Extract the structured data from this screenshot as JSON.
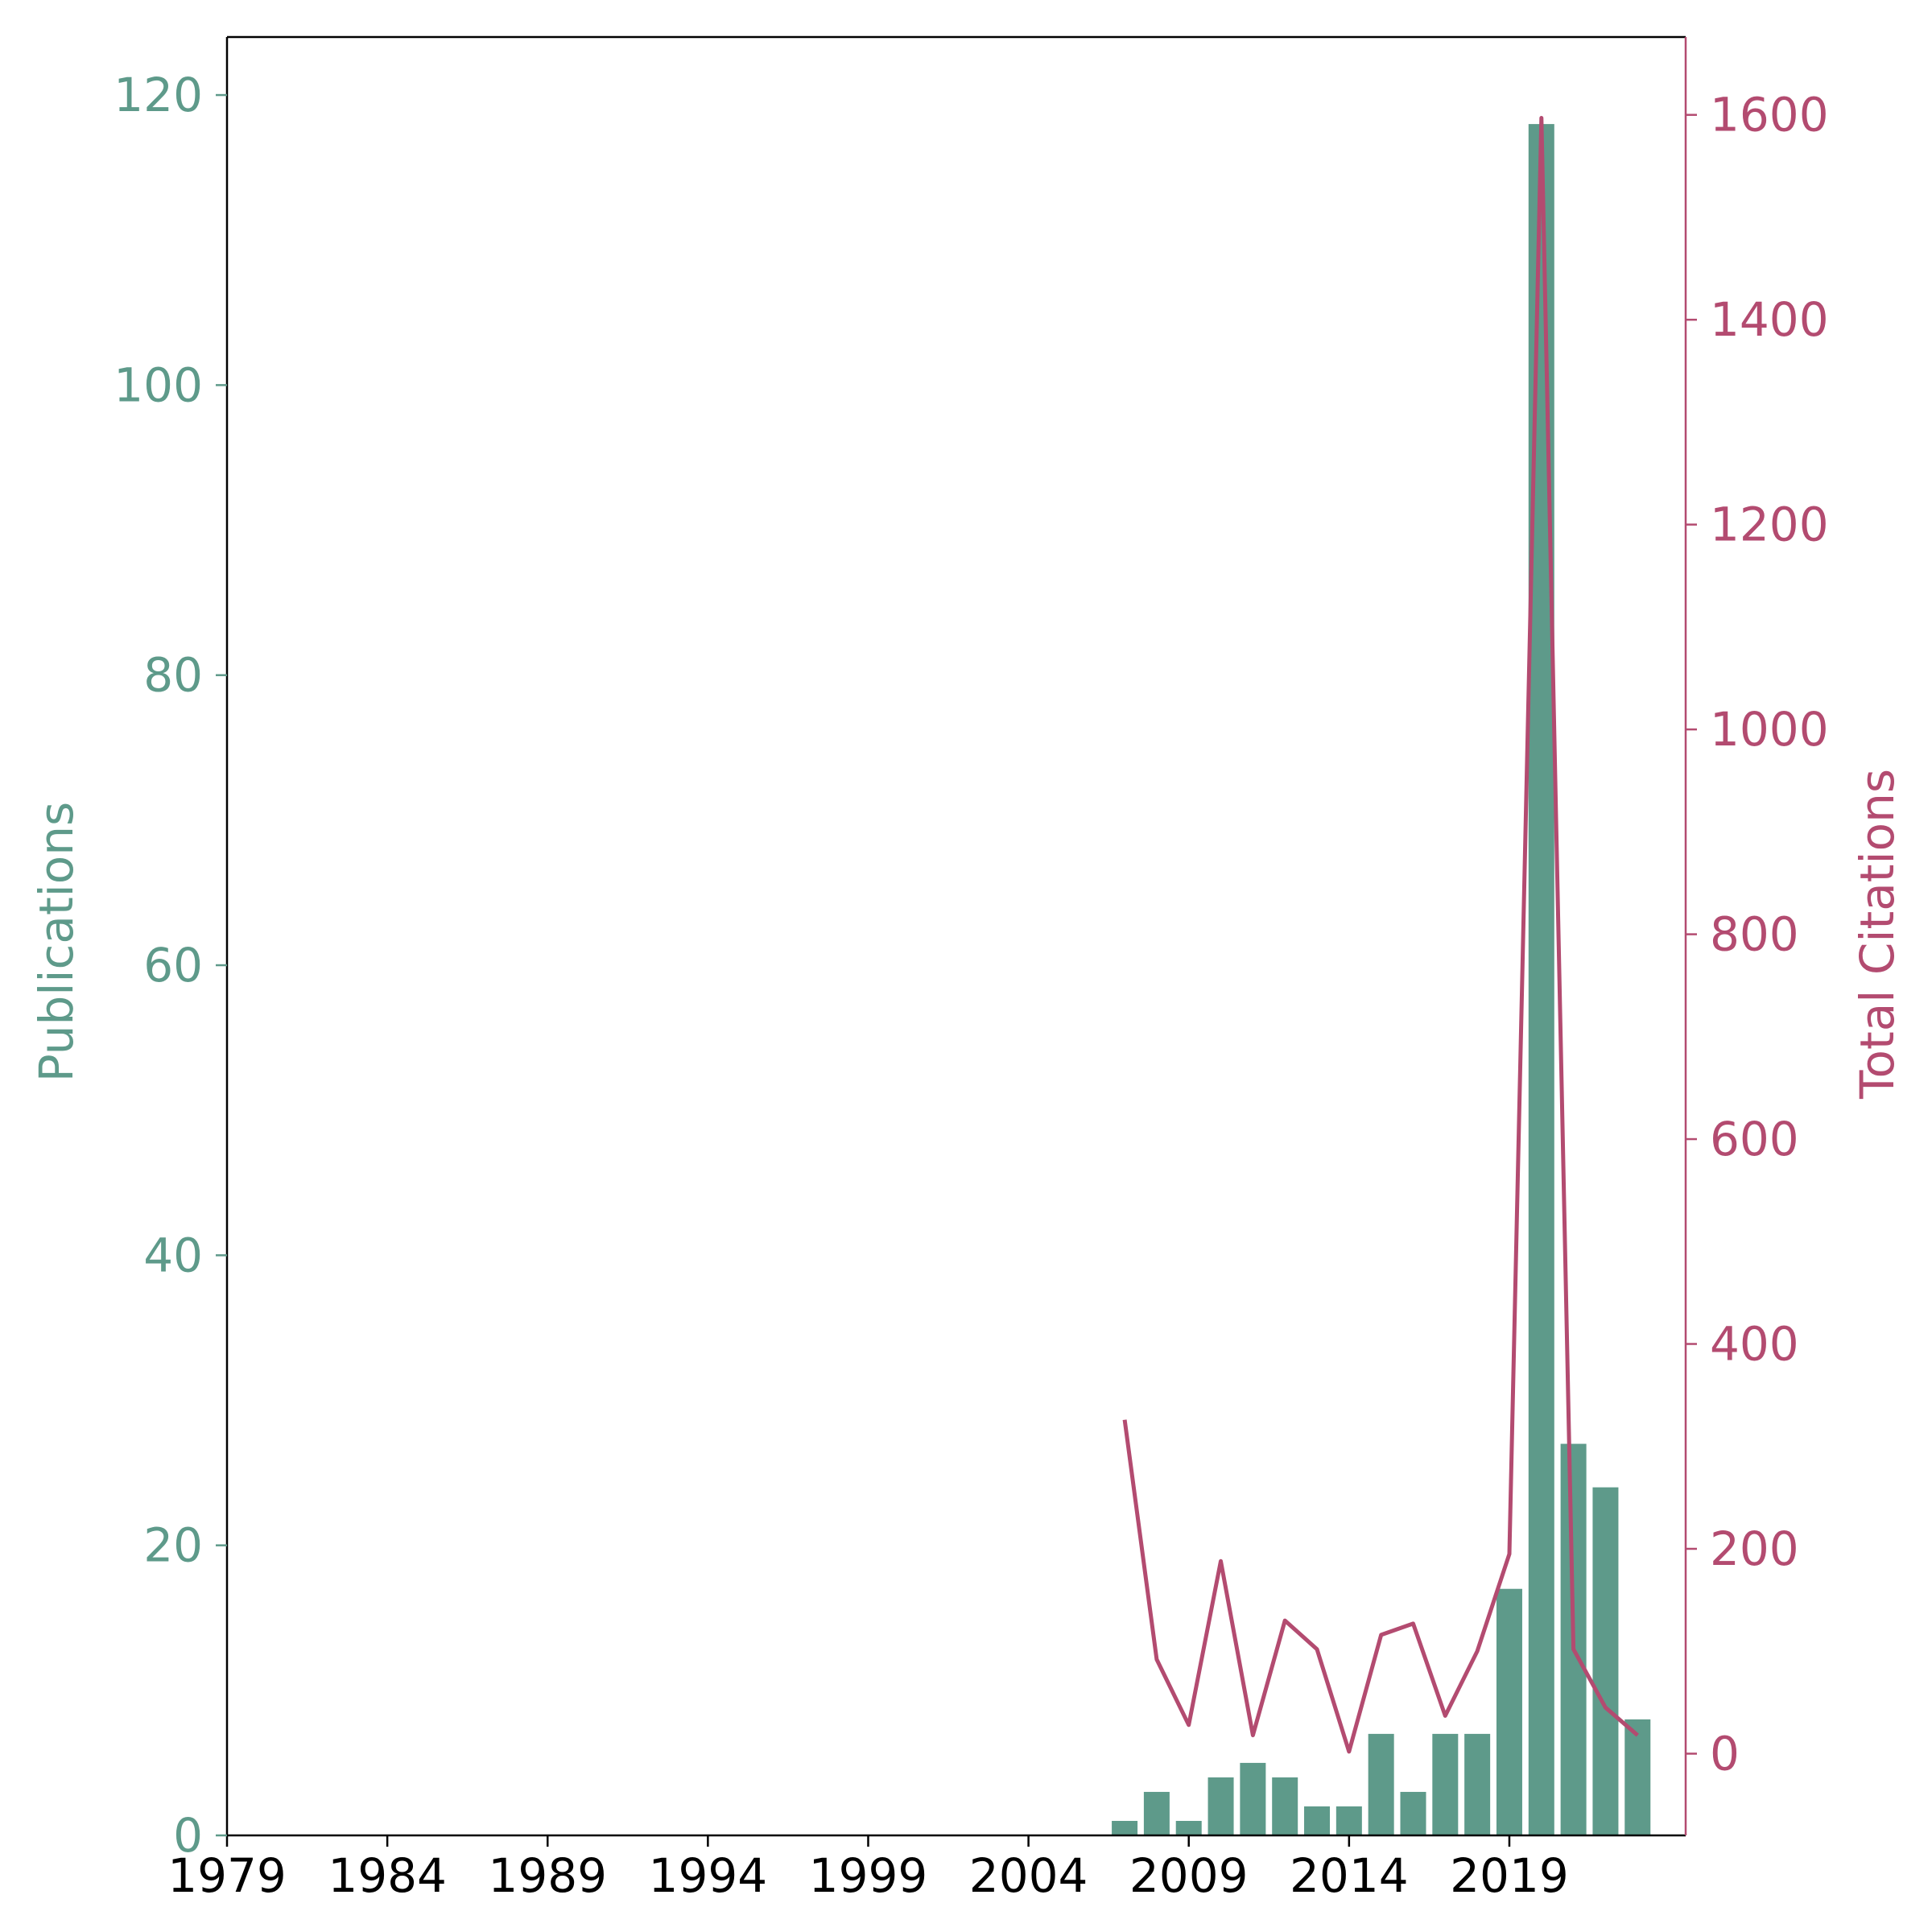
{
  "chart_data": {
    "type": "bar",
    "x_ticks": [
      "1979",
      "1984",
      "1989",
      "1994",
      "1999",
      "2004",
      "2009",
      "2014",
      "2019"
    ],
    "xlim": [
      1979,
      2024.5
    ],
    "categories": [
      2007,
      2008,
      2009,
      2010,
      2011,
      2012,
      2013,
      2014,
      2015,
      2016,
      2017,
      2018,
      2019,
      2020,
      2021,
      2022,
      2023
    ],
    "series": [
      {
        "type": "bar",
        "axis": "left",
        "color": "#5e9a8a",
        "values": [
          1,
          3,
          1,
          4,
          5,
          4,
          2,
          2,
          7,
          3,
          7,
          7,
          17,
          118,
          27,
          24,
          8
        ]
      },
      {
        "type": "line",
        "axis": "right",
        "color": "#b34b70",
        "values": [
          326,
          92,
          28,
          188,
          18,
          130,
          102,
          2,
          116,
          127,
          37,
          100,
          195,
          1597,
          102,
          45,
          18
        ]
      }
    ],
    "y_left": {
      "label": "Publications",
      "color": "#5e9a8a",
      "ylim": [
        0,
        124
      ],
      "ticks": [
        "0",
        "20",
        "40",
        "60",
        "80",
        "100",
        "120"
      ]
    },
    "y_right": {
      "label": "Total Citations",
      "color": "#b34b70",
      "ylim": [
        -79.8,
        1676
      ],
      "ticks": [
        "0",
        "200",
        "400",
        "600",
        "800",
        "1000",
        "1200",
        "1400",
        "1600"
      ]
    },
    "grid": false,
    "legend": "none"
  }
}
